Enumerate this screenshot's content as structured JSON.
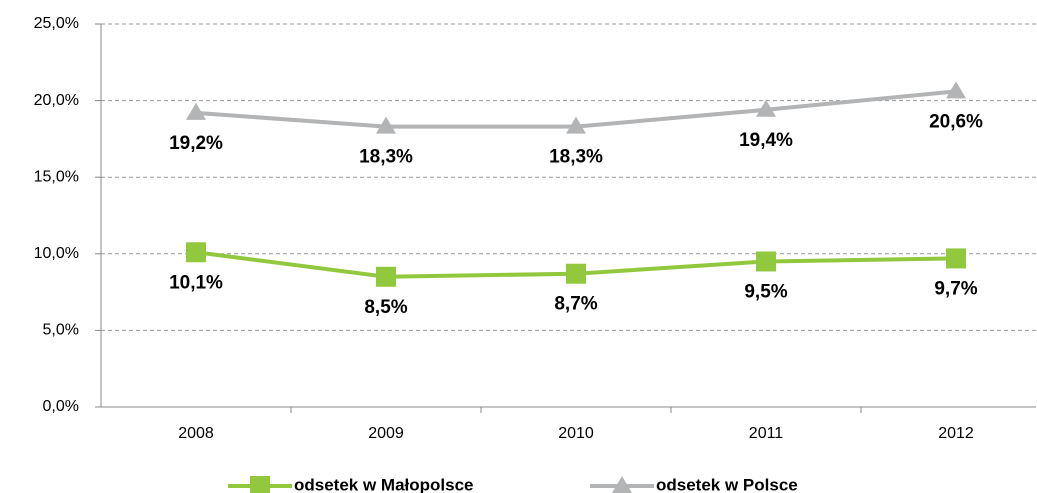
{
  "chart_data": {
    "type": "line",
    "categories": [
      "2008",
      "2009",
      "2010",
      "2011",
      "2012"
    ],
    "series": [
      {
        "name": "odsetek w Małopolsce",
        "color": "#92c83e",
        "marker": "square",
        "values": [
          10.1,
          8.5,
          8.7,
          9.5,
          9.7
        ],
        "value_labels": [
          "10,1%",
          "8,5%",
          "8,7%",
          "9,5%",
          "9,7%"
        ]
      },
      {
        "name": "odsetek w Polsce",
        "color": "#b2b4b6",
        "marker": "triangle",
        "values": [
          19.2,
          18.3,
          18.3,
          19.4,
          20.6
        ],
        "value_labels": [
          "19,2%",
          "18,3%",
          "18,3%",
          "19,4%",
          "20,6%"
        ]
      }
    ],
    "ylim": [
      0,
      25
    ],
    "yticks": [
      {
        "value": 0,
        "label": "0,0%"
      },
      {
        "value": 5,
        "label": "5,0%"
      },
      {
        "value": 10,
        "label": "10,0%"
      },
      {
        "value": 15,
        "label": "15,0%"
      },
      {
        "value": 20,
        "label": "20,0%"
      },
      {
        "value": 25,
        "label": "25,0%"
      }
    ],
    "grid": true,
    "legend": "bottom"
  }
}
